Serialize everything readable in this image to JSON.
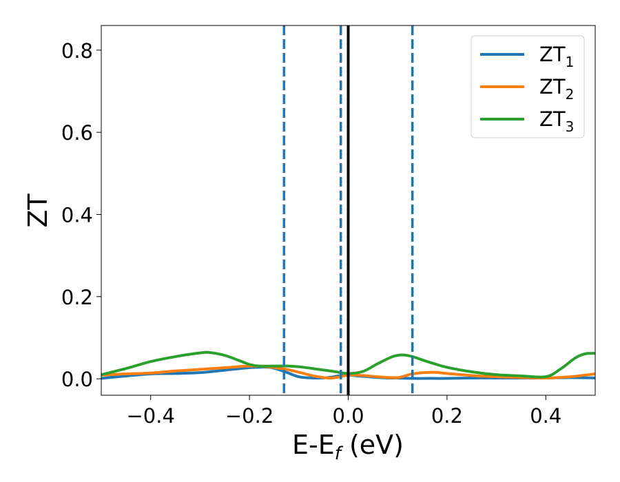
{
  "chart_data": {
    "type": "line",
    "xlabel_main": "E-E",
    "xlabel_sub": "f",
    "xlabel_rest": " (eV)",
    "ylabel": "ZT",
    "xlim": [
      -0.5,
      0.5
    ],
    "ylim": [
      -0.04,
      0.86
    ],
    "x_ticks": [
      -0.4,
      -0.2,
      0.0,
      0.2,
      0.4
    ],
    "x_tick_labels": [
      "−0.4",
      "−0.2",
      "0.0",
      "0.2",
      "0.4"
    ],
    "y_ticks": [
      0.0,
      0.2,
      0.4,
      0.6,
      0.8
    ],
    "y_tick_labels": [
      "0.0",
      "0.2",
      "0.4",
      "0.6",
      "0.8"
    ],
    "legend_position": "top-right",
    "vertical_lines": [
      {
        "x": -0.13,
        "style": "dashed",
        "color": "#1f77b4"
      },
      {
        "x": -0.015,
        "style": "dashed",
        "color": "#1f77b4"
      },
      {
        "x": 0.0,
        "style": "solid",
        "color": "#000000"
      },
      {
        "x": 0.13,
        "style": "dashed",
        "color": "#1f77b4"
      }
    ],
    "series": [
      {
        "name": "ZT",
        "sub": "1",
        "color": "#1f77b4",
        "x": [
          -0.5,
          -0.45,
          -0.4,
          -0.35,
          -0.3,
          -0.25,
          -0.2,
          -0.16,
          -0.13,
          -0.1,
          -0.07,
          -0.04,
          -0.02,
          0.0,
          0.02,
          0.05,
          0.08,
          0.1,
          0.13,
          0.16,
          0.2,
          0.25,
          0.3,
          0.35,
          0.4,
          0.45,
          0.5
        ],
        "y": [
          0.001,
          0.007,
          0.012,
          0.013,
          0.015,
          0.021,
          0.027,
          0.028,
          0.018,
          0.005,
          0.002,
          0.003,
          0.007,
          0.009,
          0.007,
          0.004,
          0.002,
          0.002,
          0.001,
          0.001,
          0.001,
          0.002,
          0.002,
          0.002,
          0.002,
          0.003,
          0.002
        ]
      },
      {
        "name": "ZT",
        "sub": "2",
        "color": "#ff7f0e",
        "x": [
          -0.5,
          -0.45,
          -0.4,
          -0.35,
          -0.3,
          -0.25,
          -0.2,
          -0.17,
          -0.13,
          -0.1,
          -0.07,
          -0.04,
          -0.02,
          0.0,
          0.03,
          0.06,
          0.1,
          0.13,
          0.17,
          0.2,
          0.25,
          0.3,
          0.35,
          0.4,
          0.45,
          0.5
        ],
        "y": [
          0.009,
          0.012,
          0.014,
          0.019,
          0.023,
          0.027,
          0.031,
          0.03,
          0.024,
          0.016,
          0.007,
          0.002,
          0.004,
          0.009,
          0.008,
          0.005,
          0.003,
          0.012,
          0.016,
          0.013,
          0.008,
          0.005,
          0.003,
          0.002,
          0.005,
          0.012
        ]
      },
      {
        "name": "ZT",
        "sub": "3",
        "color": "#2ca02c",
        "x": [
          -0.5,
          -0.45,
          -0.4,
          -0.35,
          -0.3,
          -0.28,
          -0.25,
          -0.22,
          -0.2,
          -0.18,
          -0.15,
          -0.12,
          -0.09,
          -0.06,
          -0.03,
          0.0,
          0.03,
          0.06,
          0.09,
          0.11,
          0.13,
          0.16,
          0.2,
          0.25,
          0.3,
          0.35,
          0.4,
          0.43,
          0.46,
          0.48,
          0.5
        ],
        "y": [
          0.01,
          0.025,
          0.042,
          0.054,
          0.063,
          0.064,
          0.057,
          0.044,
          0.035,
          0.031,
          0.031,
          0.031,
          0.028,
          0.023,
          0.018,
          0.013,
          0.018,
          0.037,
          0.054,
          0.058,
          0.054,
          0.042,
          0.028,
          0.017,
          0.01,
          0.007,
          0.005,
          0.024,
          0.051,
          0.061,
          0.062
        ]
      }
    ]
  }
}
